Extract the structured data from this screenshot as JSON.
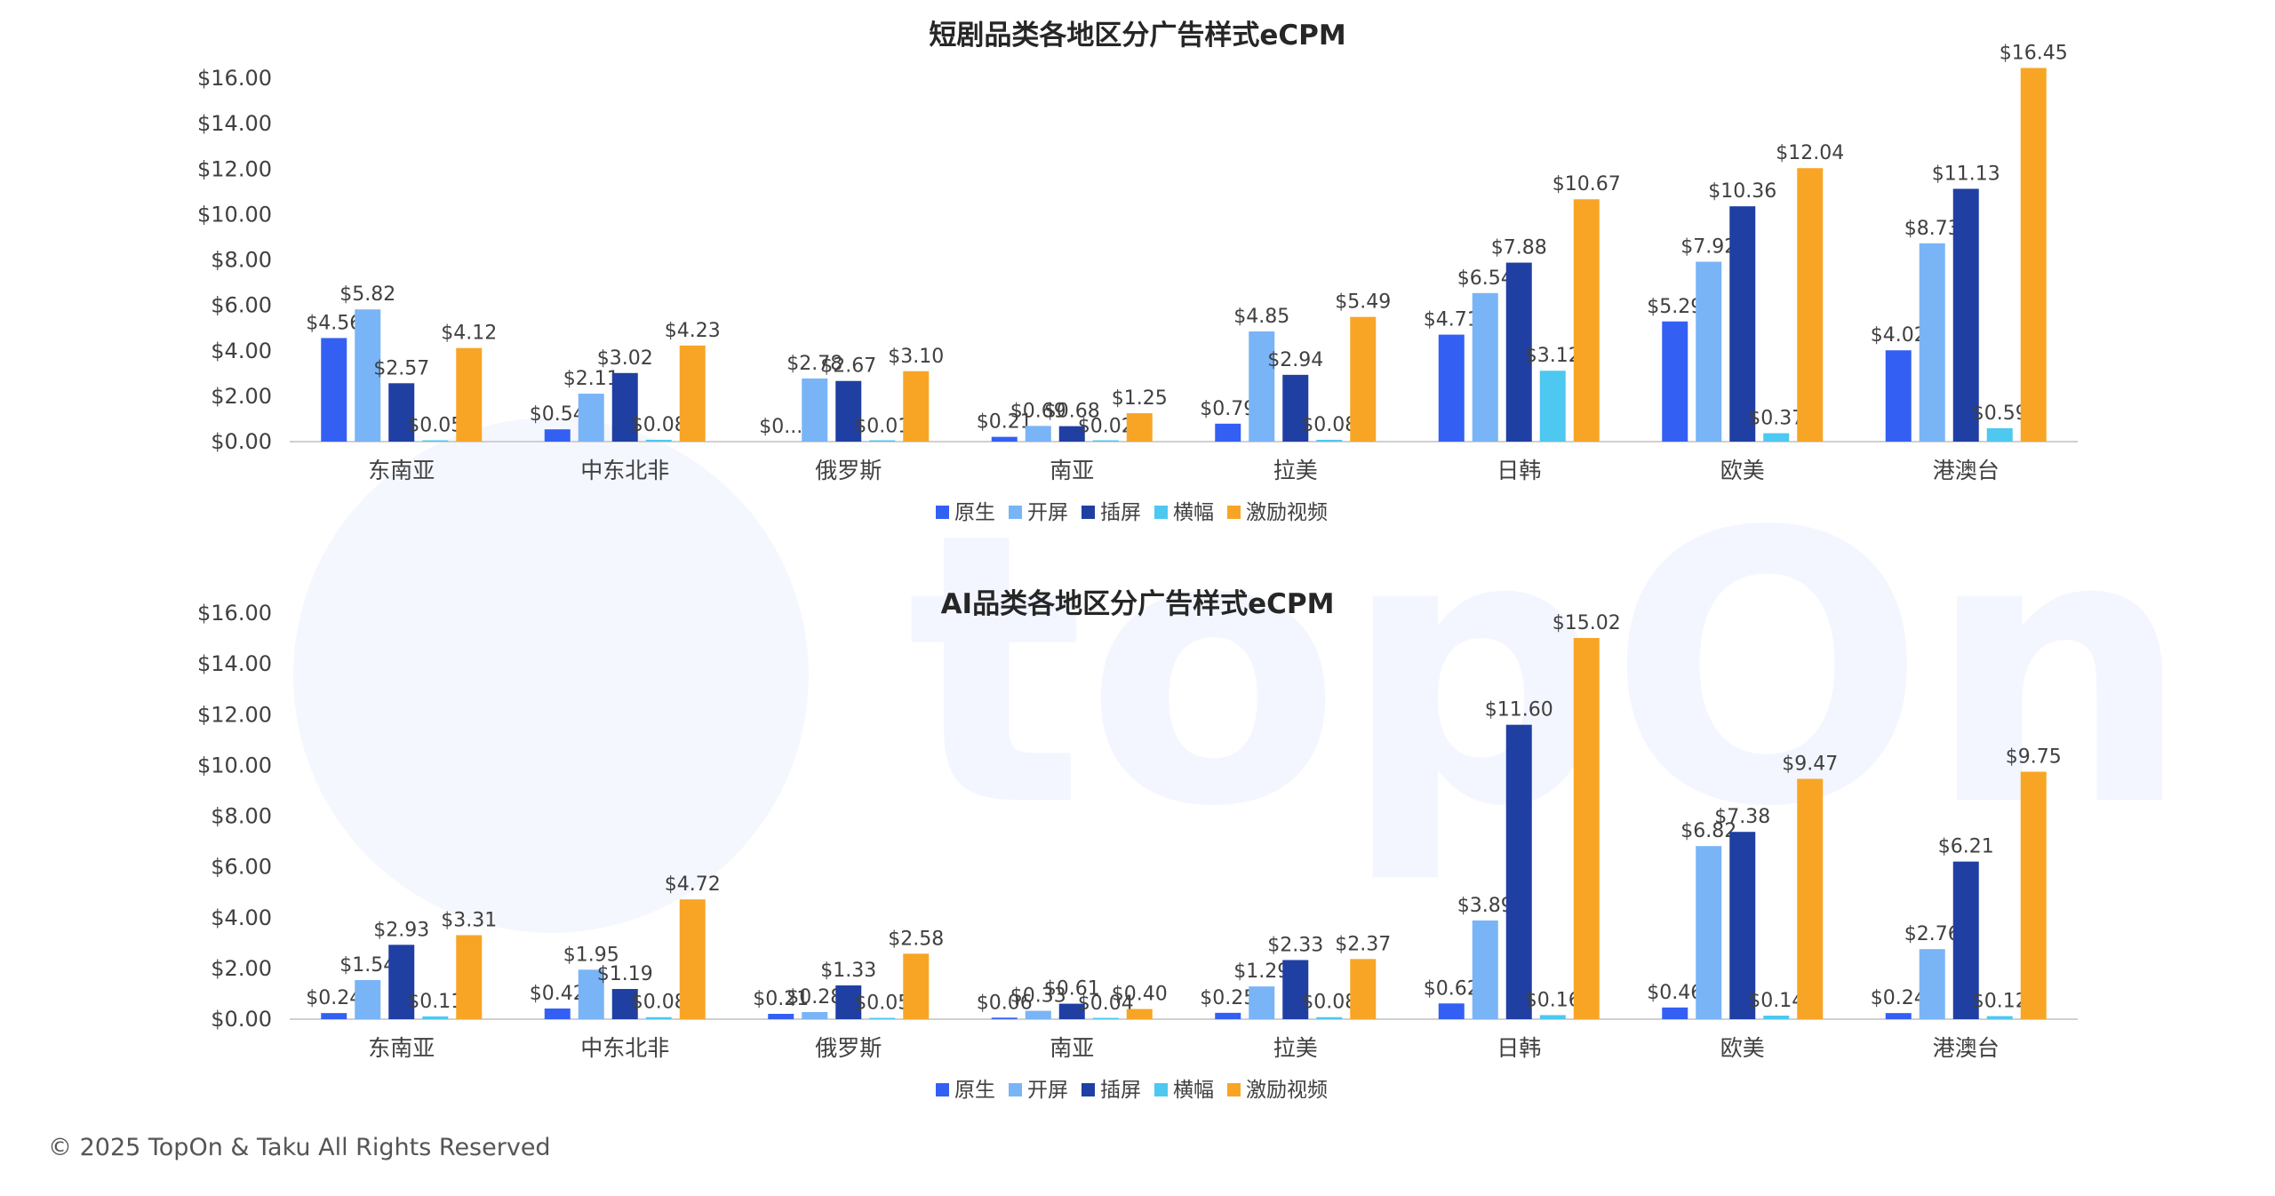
{
  "footer": "© 2025 TopOn & Taku All Rights Reserved",
  "watermark_text": "topOn",
  "colors": {
    "原生": "#3360F3",
    "开屏": "#79B4F7",
    "插屏": "#1F3FA3",
    "横幅": "#4DC8F0",
    "激励视频": "#F8A526"
  },
  "chart_data": [
    {
      "type": "bar",
      "title": "短剧品类各地区分广告样式eCPM",
      "xlabel": "",
      "ylabel": "",
      "ylim": [
        0,
        16
      ],
      "y_ticks": [
        "$0.00",
        "$2.00",
        "$4.00",
        "$6.00",
        "$8.00",
        "$10.00",
        "$12.00",
        "$14.00",
        "$16.00"
      ],
      "legend_position": "bottom",
      "categories": [
        "东南亚",
        "中东北非",
        "俄罗斯",
        "南亚",
        "拉美",
        "日韩",
        "欧美",
        "港澳台"
      ],
      "series": [
        {
          "name": "原生",
          "values": [
            4.56,
            0.54,
            0.0,
            0.21,
            0.79,
            4.71,
            5.29,
            4.02
          ],
          "labels": [
            "$4.56",
            "$0.54",
            "$0...",
            "$0.21",
            "$0.79",
            "$4.71",
            "$5.29",
            "$4.02"
          ]
        },
        {
          "name": "开屏",
          "values": [
            5.82,
            2.11,
            2.78,
            0.69,
            4.85,
            6.54,
            7.92,
            8.73
          ],
          "labels": [
            "$5.82",
            "$2.11",
            "$2.78",
            "$0.69",
            "$4.85",
            "$6.54",
            "$7.92",
            "$8.73"
          ]
        },
        {
          "name": "插屏",
          "values": [
            2.57,
            3.02,
            2.67,
            0.68,
            2.94,
            7.88,
            10.36,
            11.13
          ],
          "labels": [
            "$2.57",
            "$3.02",
            "$2.67",
            "$0.68",
            "$2.94",
            "$7.88",
            "$10.36",
            "$11.13"
          ]
        },
        {
          "name": "横幅",
          "values": [
            0.05,
            0.08,
            0.01,
            0.02,
            0.08,
            3.12,
            0.37,
            0.59
          ],
          "labels": [
            "$0.05",
            "$0.08",
            "$0.01",
            "$0.02",
            "$0.08",
            "$3.12",
            "$0.37",
            "$0.59"
          ]
        },
        {
          "name": "激励视频",
          "values": [
            4.12,
            4.23,
            3.1,
            1.25,
            5.49,
            10.67,
            12.04,
            16.45
          ],
          "labels": [
            "$4.12",
            "$4.23",
            "$3.10",
            "$1.25",
            "$5.49",
            "$10.67",
            "$12.04",
            "$16.45"
          ]
        }
      ]
    },
    {
      "type": "bar",
      "title": "AI品类各地区分广告样式eCPM",
      "xlabel": "",
      "ylabel": "",
      "ylim": [
        0,
        16
      ],
      "y_ticks": [
        "$0.00",
        "$2.00",
        "$4.00",
        "$6.00",
        "$8.00",
        "$10.00",
        "$12.00",
        "$14.00",
        "$16.00"
      ],
      "legend_position": "bottom",
      "categories": [
        "东南亚",
        "中东北非",
        "俄罗斯",
        "南亚",
        "拉美",
        "日韩",
        "欧美",
        "港澳台"
      ],
      "series": [
        {
          "name": "原生",
          "values": [
            0.24,
            0.42,
            0.21,
            0.06,
            0.25,
            0.62,
            0.46,
            0.24
          ],
          "labels": [
            "$0.24",
            "$0.42",
            "$0.21",
            "$0.06",
            "$0.25",
            "$0.62",
            "$0.46",
            "$0.24"
          ]
        },
        {
          "name": "开屏",
          "values": [
            1.54,
            1.95,
            0.28,
            0.33,
            1.29,
            3.89,
            6.82,
            2.76
          ],
          "labels": [
            "$1.54",
            "$1.95",
            "$0.28",
            "$0.33",
            "$1.29",
            "$3.89",
            "$6.82",
            "$2.76"
          ]
        },
        {
          "name": "插屏",
          "values": [
            2.93,
            1.19,
            1.33,
            0.61,
            2.33,
            11.6,
            7.38,
            6.21
          ],
          "labels": [
            "$2.93",
            "$1.19",
            "$1.33",
            "$0.61",
            "$2.33",
            "$11.60",
            "$7.38",
            "$6.21"
          ]
        },
        {
          "name": "横幅",
          "values": [
            0.11,
            0.08,
            0.05,
            0.04,
            0.08,
            0.16,
            0.14,
            0.12
          ],
          "labels": [
            "$0.11",
            "$0.08",
            "$0.05",
            "$0.04",
            "$0.08",
            "$0.16",
            "$0.14",
            "$0.12"
          ]
        },
        {
          "name": "激励视频",
          "values": [
            3.31,
            4.72,
            2.58,
            0.4,
            2.37,
            15.02,
            9.47,
            9.75
          ],
          "labels": [
            "$3.31",
            "$4.72",
            "$2.58",
            "$0.40",
            "$2.37",
            "$15.02",
            "$9.47",
            "$9.75"
          ]
        }
      ]
    }
  ]
}
